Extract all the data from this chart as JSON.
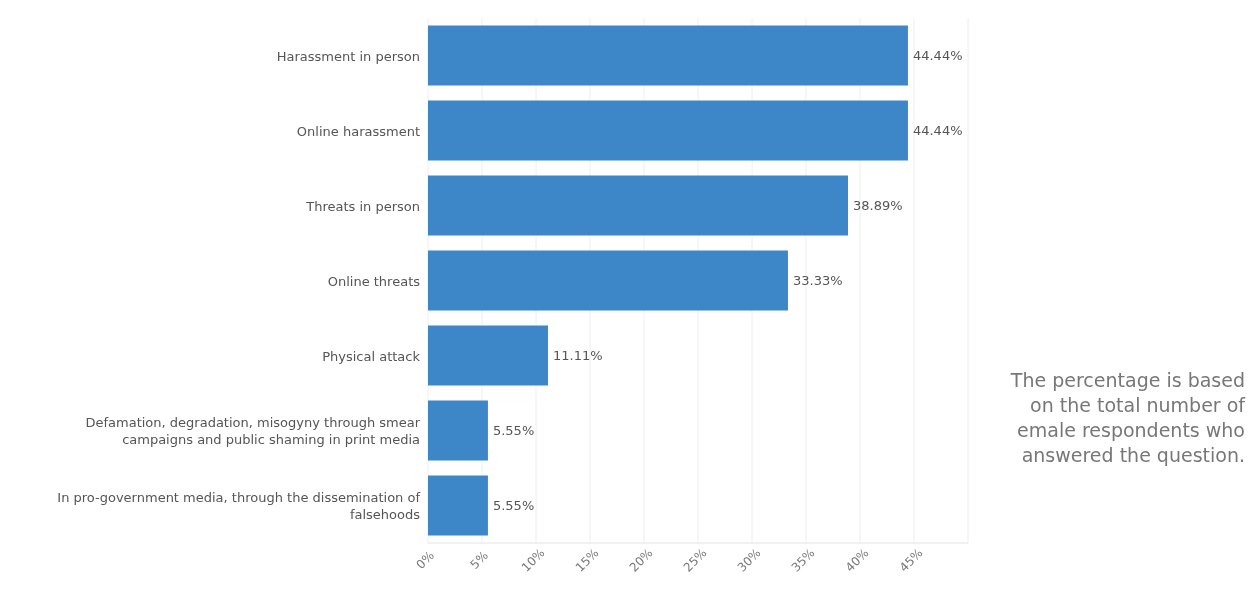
{
  "chart_data": {
    "type": "bar",
    "orientation": "horizontal",
    "categories": [
      "Harassment in person",
      "Online harassment",
      "Threats in person",
      "Online threats",
      "Physical attack",
      "Defamation, degradation, misogyny through smear campaigns and public shaming in print media",
      "In pro-government media, through the dissemination of falsehoods"
    ],
    "values": [
      44.44,
      44.44,
      38.89,
      33.33,
      11.11,
      5.55,
      5.55
    ],
    "value_labels": [
      "44.44%",
      "44.44%",
      "38.89%",
      "33.33%",
      "11.11%",
      "5.55%",
      "5.55%"
    ],
    "color": "#3d87c8",
    "xlim": [
      0,
      50
    ],
    "xticks": [
      {
        "value": 0,
        "label": "0%"
      },
      {
        "value": 5,
        "label": "5%"
      },
      {
        "value": 10,
        "label": "10%"
      },
      {
        "value": 15,
        "label": "15%"
      },
      {
        "value": 20,
        "label": "20%"
      },
      {
        "value": 25,
        "label": "25%"
      },
      {
        "value": 30,
        "label": "30%"
      },
      {
        "value": 35,
        "label": "35%"
      },
      {
        "value": 40,
        "label": "40%"
      },
      {
        "value": 45,
        "label": "45%"
      }
    ],
    "grid": "x",
    "legend": false,
    "annotations": [
      "The percentage is based on the total number of emale respondents who answered the question."
    ]
  }
}
